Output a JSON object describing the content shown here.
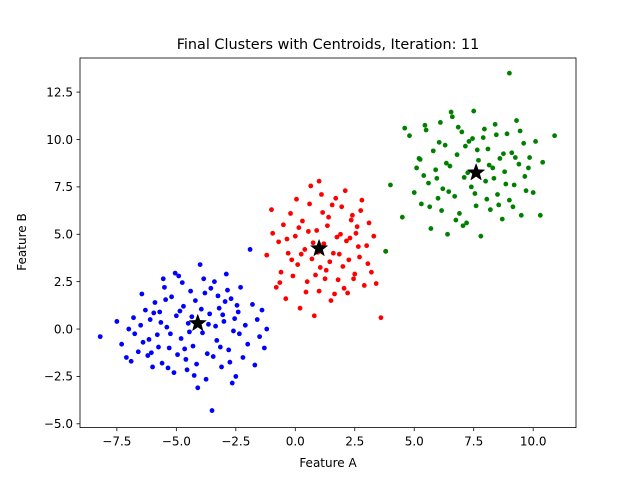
{
  "chart_data": {
    "type": "scatter",
    "title": "Final Clusters with Centroids, Iteration: 11",
    "xlabel": "Feature A",
    "ylabel": "Feature B",
    "xlim": [
      -9.05,
      11.8
    ],
    "ylim": [
      -5.2,
      14.3
    ],
    "xticks": [
      -7.5,
      -5.0,
      -2.5,
      0.0,
      2.5,
      5.0,
      7.5,
      10.0
    ],
    "xtick_labels": [
      "−7.5",
      "−5.0",
      "−2.5",
      "0.0",
      "2.5",
      "5.0",
      "7.5",
      "10.0"
    ],
    "yticks": [
      -5.0,
      -2.5,
      0.0,
      2.5,
      5.0,
      7.5,
      10.0,
      12.5
    ],
    "ytick_labels": [
      "−5.0",
      "−2.5",
      "0.0",
      "2.5",
      "5.0",
      "7.5",
      "10.0",
      "12.5"
    ],
    "grid": false,
    "legend": "none",
    "series": [
      {
        "color": "#0000ff",
        "points": [
          [
            -8.2,
            -0.4
          ],
          [
            -7.5,
            0.4
          ],
          [
            -7.3,
            -0.8
          ],
          [
            -7.1,
            -1.5
          ],
          [
            -7.0,
            0.0
          ],
          [
            -6.9,
            -1.7
          ],
          [
            -6.8,
            0.6
          ],
          [
            -6.6,
            -1.2
          ],
          [
            -6.5,
            0.2
          ],
          [
            -6.4,
            -0.7
          ],
          [
            -6.3,
            1.0
          ],
          [
            -6.2,
            -1.4
          ],
          [
            -6.1,
            0.5
          ],
          [
            -6.0,
            -2.0
          ],
          [
            -5.9,
            1.4
          ],
          [
            -5.8,
            -0.3
          ],
          [
            -5.7,
            0.9
          ],
          [
            -5.6,
            -1.8
          ],
          [
            -5.5,
            2.2
          ],
          [
            -5.4,
            0.1
          ],
          [
            -5.3,
            -1.0
          ],
          [
            -5.2,
            1.7
          ],
          [
            -5.1,
            -2.3
          ],
          [
            -5.0,
            0.7
          ],
          [
            -4.9,
            2.8
          ],
          [
            -4.8,
            -0.5
          ],
          [
            -4.7,
            1.2
          ],
          [
            -4.6,
            -1.6
          ],
          [
            -4.5,
            0.3
          ],
          [
            -4.4,
            2.0
          ],
          [
            -4.3,
            -0.9
          ],
          [
            -4.2,
            1.5
          ],
          [
            -4.1,
            -3.1
          ],
          [
            -4.0,
            3.4
          ],
          [
            -3.9,
            -0.2
          ],
          [
            -3.8,
            1.9
          ],
          [
            -3.7,
            -1.3
          ],
          [
            -3.6,
            0.8
          ],
          [
            -3.5,
            -4.3
          ],
          [
            -3.4,
            2.5
          ],
          [
            -3.3,
            -0.6
          ],
          [
            -3.2,
            1.1
          ],
          [
            -3.1,
            -2.0
          ],
          [
            -3.0,
            0.4
          ],
          [
            -2.9,
            2.9
          ],
          [
            -2.8,
            -1.1
          ],
          [
            -2.7,
            1.6
          ],
          [
            -2.6,
            -0.1
          ],
          [
            -2.5,
            -2.5
          ],
          [
            -2.4,
            0.9
          ],
          [
            -2.3,
            2.2
          ],
          [
            -2.2,
            -1.5
          ],
          [
            -2.1,
            0.2
          ],
          [
            -2.0,
            -0.8
          ],
          [
            -1.9,
            4.2
          ],
          [
            -1.8,
            1.3
          ],
          [
            -1.7,
            -1.9
          ],
          [
            -1.6,
            0.5
          ],
          [
            -1.5,
            -0.4
          ],
          [
            -1.4,
            1.0
          ],
          [
            -1.3,
            -1.0
          ],
          [
            -1.2,
            0.0
          ],
          [
            -5.95,
            0.85
          ],
          [
            -5.75,
            -0.95
          ],
          [
            -5.45,
            1.55
          ],
          [
            -5.25,
            -0.25
          ],
          [
            -4.95,
            -1.35
          ],
          [
            -4.75,
            2.45
          ],
          [
            -4.55,
            -2.15
          ],
          [
            -4.35,
            0.65
          ],
          [
            -4.15,
            -1.85
          ],
          [
            -3.95,
            1.05
          ],
          [
            -3.75,
            -2.65
          ],
          [
            -3.55,
            2.15
          ],
          [
            -3.35,
            0.15
          ],
          [
            -3.15,
            -0.95
          ],
          [
            -2.95,
            1.45
          ],
          [
            -2.75,
            -1.75
          ],
          [
            -2.55,
            0.55
          ],
          [
            -2.35,
            -0.25
          ],
          [
            -6.45,
            1.85
          ],
          [
            -6.15,
            -0.55
          ],
          [
            -5.65,
            0.35
          ],
          [
            -5.35,
            -2.05
          ],
          [
            -4.85,
            0.95
          ],
          [
            -4.45,
            -0.15
          ],
          [
            -3.85,
            2.65
          ],
          [
            -3.45,
            -1.45
          ],
          [
            -3.05,
            0.75
          ],
          [
            -2.65,
            -2.85
          ],
          [
            -6.75,
            -0.25
          ],
          [
            -5.05,
            2.95
          ],
          [
            -4.65,
            -1.05
          ],
          [
            -3.65,
            0.25
          ],
          [
            -2.85,
            2.05
          ],
          [
            -2.45,
            1.25
          ],
          [
            -6.05,
            -1.25
          ],
          [
            -5.55,
            2.65
          ],
          [
            -4.25,
            -2.45
          ],
          [
            -3.25,
            1.75
          ]
        ]
      },
      {
        "color": "#ff0000",
        "points": [
          [
            -1.2,
            3.9
          ],
          [
            -1.0,
            6.3
          ],
          [
            -0.8,
            2.2
          ],
          [
            -0.7,
            4.6
          ],
          [
            -0.6,
            3.0
          ],
          [
            -0.5,
            5.5
          ],
          [
            -0.4,
            1.6
          ],
          [
            -0.3,
            4.0
          ],
          [
            -0.2,
            6.1
          ],
          [
            -0.1,
            2.8
          ],
          [
            0.0,
            4.9
          ],
          [
            0.1,
            3.4
          ],
          [
            0.2,
            1.1
          ],
          [
            0.3,
            5.7
          ],
          [
            0.4,
            4.2
          ],
          [
            0.5,
            2.5
          ],
          [
            0.6,
            6.6
          ],
          [
            0.7,
            3.7
          ],
          [
            0.8,
            0.7
          ],
          [
            0.9,
            5.2
          ],
          [
            1.0,
            2.0
          ],
          [
            1.1,
            7.1
          ],
          [
            1.2,
            4.5
          ],
          [
            1.3,
            3.1
          ],
          [
            1.4,
            5.9
          ],
          [
            1.5,
            1.5
          ],
          [
            1.6,
            4.0
          ],
          [
            1.7,
            6.9
          ],
          [
            1.8,
            2.6
          ],
          [
            1.9,
            5.0
          ],
          [
            2.0,
            3.3
          ],
          [
            2.1,
            7.3
          ],
          [
            2.2,
            1.9
          ],
          [
            2.3,
            4.8
          ],
          [
            2.4,
            6.0
          ],
          [
            2.5,
            2.9
          ],
          [
            2.6,
            5.4
          ],
          [
            2.7,
            3.8
          ],
          [
            2.8,
            6.8
          ],
          [
            2.9,
            2.3
          ],
          [
            3.0,
            4.4
          ],
          [
            3.1,
            5.6
          ],
          [
            3.2,
            3.0
          ],
          [
            3.3,
            4.9
          ],
          [
            3.4,
            2.4
          ],
          [
            3.6,
            0.6
          ],
          [
            3.8,
            4.1
          ],
          [
            0.25,
            3.95
          ],
          [
            0.55,
            5.15
          ],
          [
            0.85,
            2.85
          ],
          [
            1.15,
            6.15
          ],
          [
            1.45,
            3.55
          ],
          [
            1.75,
            4.85
          ],
          [
            2.05,
            2.15
          ],
          [
            2.35,
            5.75
          ],
          [
            2.65,
            4.35
          ],
          [
            0.05,
            6.85
          ],
          [
            0.45,
            1.95
          ],
          [
            0.75,
            4.55
          ],
          [
            1.05,
            3.25
          ],
          [
            1.35,
            5.45
          ],
          [
            1.65,
            1.85
          ],
          [
            1.95,
            6.45
          ],
          [
            2.25,
            3.65
          ],
          [
            2.55,
            5.05
          ],
          [
            -0.65,
            2.45
          ],
          [
            -0.35,
            4.75
          ],
          [
            -0.15,
            3.65
          ],
          [
            0.15,
            5.35
          ],
          [
            0.65,
            7.55
          ],
          [
            0.95,
            4.05
          ],
          [
            1.25,
            2.65
          ],
          [
            1.55,
            6.55
          ],
          [
            1.85,
            3.95
          ],
          [
            2.15,
            4.65
          ],
          [
            2.45,
            2.65
          ],
          [
            2.75,
            6.25
          ],
          [
            3.05,
            3.45
          ],
          [
            -0.95,
            5.05
          ],
          [
            1.0,
            7.8
          ]
        ]
      },
      {
        "color": "#008000",
        "points": [
          [
            4.0,
            7.6
          ],
          [
            4.5,
            5.9
          ],
          [
            3.8,
            4.1
          ],
          [
            4.8,
            10.2
          ],
          [
            5.0,
            7.2
          ],
          [
            5.2,
            9.0
          ],
          [
            5.3,
            6.6
          ],
          [
            5.4,
            8.1
          ],
          [
            5.5,
            10.5
          ],
          [
            5.6,
            7.7
          ],
          [
            5.7,
            5.3
          ],
          [
            5.8,
            9.4
          ],
          [
            5.9,
            8.4
          ],
          [
            6.0,
            6.9
          ],
          [
            6.1,
            10.9
          ],
          [
            6.2,
            7.4
          ],
          [
            6.3,
            9.7
          ],
          [
            6.4,
            5.0
          ],
          [
            6.5,
            8.6
          ],
          [
            6.6,
            11.2
          ],
          [
            6.7,
            7.0
          ],
          [
            6.8,
            9.2
          ],
          [
            6.9,
            6.1
          ],
          [
            7.0,
            10.4
          ],
          [
            7.1,
            8.0
          ],
          [
            7.2,
            5.6
          ],
          [
            7.3,
            9.9
          ],
          [
            7.4,
            7.5
          ],
          [
            7.5,
            11.5
          ],
          [
            7.6,
            6.5
          ],
          [
            7.7,
            8.9
          ],
          [
            7.8,
            4.9
          ],
          [
            7.9,
            10.1
          ],
          [
            8.0,
            7.8
          ],
          [
            8.1,
            9.5
          ],
          [
            8.2,
            6.3
          ],
          [
            8.3,
            8.5
          ],
          [
            8.4,
            10.8
          ],
          [
            8.5,
            7.1
          ],
          [
            8.6,
            9.0
          ],
          [
            8.7,
            5.8
          ],
          [
            8.8,
            8.3
          ],
          [
            8.9,
            10.3
          ],
          [
            9.0,
            6.8
          ],
          [
            9.1,
            9.3
          ],
          [
            9.2,
            7.6
          ],
          [
            9.3,
            11.0
          ],
          [
            9.4,
            8.7
          ],
          [
            9.5,
            6.0
          ],
          [
            9.6,
            9.8
          ],
          [
            9.7,
            7.3
          ],
          [
            9.8,
            8.5
          ],
          [
            10.0,
            7.2
          ],
          [
            10.1,
            9.9
          ],
          [
            10.3,
            6.0
          ],
          [
            10.4,
            8.8
          ],
          [
            10.9,
            10.2
          ],
          [
            9.0,
            13.5
          ],
          [
            5.25,
            8.95
          ],
          [
            5.65,
            6.45
          ],
          [
            6.05,
            9.85
          ],
          [
            6.45,
            7.25
          ],
          [
            6.85,
            10.65
          ],
          [
            7.25,
            8.25
          ],
          [
            7.65,
            9.45
          ],
          [
            8.05,
            6.85
          ],
          [
            8.45,
            10.25
          ],
          [
            8.85,
            7.65
          ],
          [
            9.25,
            9.05
          ],
          [
            9.65,
            8.05
          ],
          [
            5.45,
            10.75
          ],
          [
            5.95,
            7.95
          ],
          [
            6.35,
            8.75
          ],
          [
            6.75,
            5.75
          ],
          [
            7.15,
            9.65
          ],
          [
            7.55,
            7.15
          ],
          [
            7.95,
            10.55
          ],
          [
            8.35,
            7.95
          ],
          [
            8.75,
            9.25
          ],
          [
            9.15,
            6.45
          ],
          [
            4.6,
            10.6
          ],
          [
            5.1,
            8.5
          ],
          [
            6.55,
            11.45
          ],
          [
            7.45,
            10.05
          ],
          [
            8.15,
            8.65
          ],
          [
            8.55,
            6.55
          ],
          [
            9.45,
            10.45
          ],
          [
            9.85,
            9.05
          ],
          [
            6.15,
            6.25
          ],
          [
            7.05,
            5.45
          ]
        ]
      }
    ],
    "centroids": [
      {
        "x": -4.1,
        "y": 0.3,
        "color": "#000000"
      },
      {
        "x": 1.0,
        "y": 4.25,
        "color": "#000000"
      },
      {
        "x": 7.6,
        "y": 8.25,
        "color": "#000000"
      }
    ]
  }
}
